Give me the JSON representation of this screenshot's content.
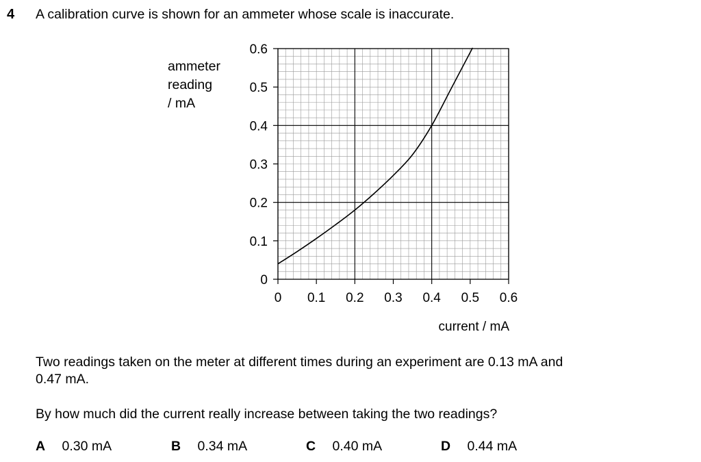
{
  "question": {
    "number": "4",
    "text": "A calibration curve is shown for an ammeter whose scale is inaccurate."
  },
  "chart_data": {
    "type": "line",
    "ylabel_lines": [
      "ammeter",
      "reading",
      "/ mA"
    ],
    "xlabel": "current / mA",
    "x_ticks": [
      "0",
      "0.1",
      "0.2",
      "0.3",
      "0.4",
      "0.5",
      "0.6"
    ],
    "y_ticks": [
      "0",
      "0.1",
      "0.2",
      "0.3",
      "0.4",
      "0.5",
      "0.6"
    ],
    "xlim": [
      0,
      0.6
    ],
    "ylim": [
      0,
      0.6
    ],
    "grid": true,
    "series": [
      {
        "x": [
          0,
          0.05,
          0.1,
          0.15,
          0.2,
          0.25,
          0.3,
          0.35,
          0.4,
          0.45,
          0.5,
          0.505
        ],
        "y": [
          0.04,
          0.072,
          0.106,
          0.142,
          0.18,
          0.223,
          0.27,
          0.324,
          0.4,
          0.495,
          0.59,
          0.6
        ]
      }
    ]
  },
  "body": {
    "line1": "Two readings taken on the meter at different times during an experiment are 0.13 mA and",
    "line2": "0.47 mA.",
    "prompt": "By how much did the current really increase between taking the two readings?"
  },
  "options": [
    {
      "letter": "A",
      "value": "0.30 mA"
    },
    {
      "letter": "B",
      "value": "0.34 mA"
    },
    {
      "letter": "C",
      "value": "0.40 mA"
    },
    {
      "letter": "D",
      "value": "0.44 mA"
    }
  ]
}
